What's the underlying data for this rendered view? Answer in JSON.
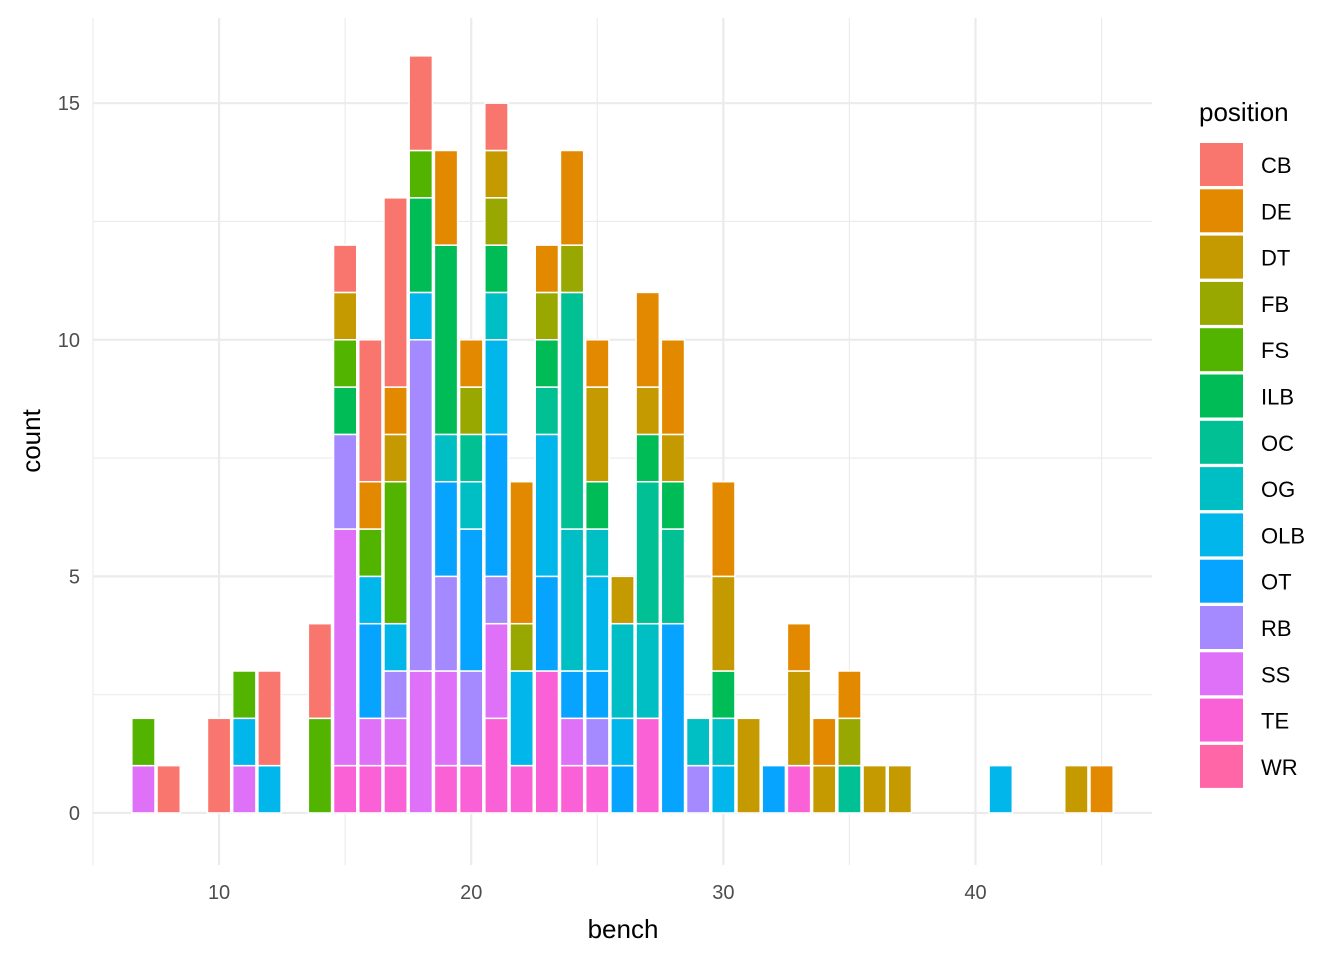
{
  "chart_data": {
    "type": "bar",
    "stacked": true,
    "xlabel": "bench",
    "ylabel": "count",
    "xlim": [
      5,
      47
    ],
    "ylim": [
      -1.1,
      16.8
    ],
    "x_ticks": [
      10,
      20,
      30,
      40
    ],
    "y_ticks": [
      0,
      5,
      10,
      15
    ],
    "grid": true,
    "legend": {
      "title": "position",
      "placement": "right"
    },
    "series": [
      {
        "name": "CB",
        "color": "#F8766D",
        "x": [
          8,
          10,
          12,
          14,
          15,
          16,
          17,
          18,
          21
        ],
        "values": [
          1,
          2,
          2,
          2,
          1,
          3,
          4,
          2,
          1
        ]
      },
      {
        "name": "DE",
        "color": "#E38900",
        "x": [
          16,
          17,
          19,
          20,
          22,
          23,
          24,
          25,
          27,
          28,
          30,
          33,
          34,
          35,
          45
        ],
        "values": [
          1,
          1,
          2,
          1,
          3,
          1,
          2,
          1,
          2,
          2,
          2,
          1,
          1,
          1,
          1
        ]
      },
      {
        "name": "DT",
        "color": "#C49A00",
        "x": [
          15,
          17,
          21,
          25,
          26,
          27,
          28,
          30,
          31,
          33,
          34,
          36,
          37,
          44
        ],
        "values": [
          1,
          1,
          1,
          2,
          1,
          1,
          1,
          2,
          2,
          2,
          1,
          1,
          1,
          1
        ]
      },
      {
        "name": "FB",
        "color": "#99A800",
        "x": [
          20,
          21,
          22,
          23,
          24,
          35
        ],
        "values": [
          1,
          1,
          1,
          1,
          1,
          1
        ]
      },
      {
        "name": "FS",
        "color": "#53B400",
        "x": [
          7,
          11,
          14,
          15,
          16,
          17,
          18
        ],
        "values": [
          1,
          1,
          2,
          1,
          1,
          3,
          1
        ]
      },
      {
        "name": "ILB",
        "color": "#00BC56",
        "x": [
          15,
          18,
          19,
          21,
          23,
          25,
          27,
          28,
          30
        ],
        "values": [
          1,
          2,
          4,
          1,
          1,
          1,
          1,
          1,
          1
        ]
      },
      {
        "name": "OC",
        "color": "#00C094",
        "x": [
          20,
          23,
          24,
          27,
          28,
          35
        ],
        "values": [
          1,
          1,
          5,
          3,
          2,
          1
        ]
      },
      {
        "name": "OG",
        "color": "#00BFC4",
        "x": [
          19,
          20,
          21,
          24,
          25,
          26,
          27,
          29,
          30
        ],
        "values": [
          1,
          1,
          1,
          3,
          1,
          2,
          2,
          1,
          1
        ]
      },
      {
        "name": "OLB",
        "color": "#00B6EB",
        "x": [
          11,
          12,
          16,
          17,
          18,
          21,
          22,
          23,
          25,
          26,
          30,
          41
        ],
        "values": [
          1,
          1,
          1,
          1,
          1,
          2,
          2,
          3,
          2,
          1,
          1,
          1
        ]
      },
      {
        "name": "OT",
        "color": "#06A4FF",
        "x": [
          16,
          19,
          20,
          21,
          23,
          24,
          25,
          26,
          28,
          32
        ],
        "values": [
          2,
          2,
          3,
          3,
          2,
          1,
          1,
          1,
          4,
          1
        ]
      },
      {
        "name": "RB",
        "color": "#A58AFF",
        "x": [
          15,
          17,
          18,
          19,
          20,
          21,
          25,
          29
        ],
        "values": [
          2,
          1,
          7,
          2,
          2,
          1,
          1,
          1
        ]
      },
      {
        "name": "SS",
        "color": "#DF70F8",
        "x": [
          7,
          11,
          15,
          16,
          17,
          18,
          19,
          21,
          24
        ],
        "values": [
          1,
          1,
          5,
          1,
          1,
          3,
          2,
          2,
          1
        ]
      },
      {
        "name": "TE",
        "color": "#FB61D7",
        "x": [
          15,
          16,
          17,
          19,
          20,
          21,
          22,
          23,
          24,
          25,
          27,
          33
        ],
        "values": [
          1,
          1,
          1,
          1,
          1,
          2,
          1,
          3,
          1,
          1,
          2,
          1
        ]
      },
      {
        "name": "WR",
        "color": "#FF66A8",
        "x": [],
        "values": []
      }
    ]
  }
}
